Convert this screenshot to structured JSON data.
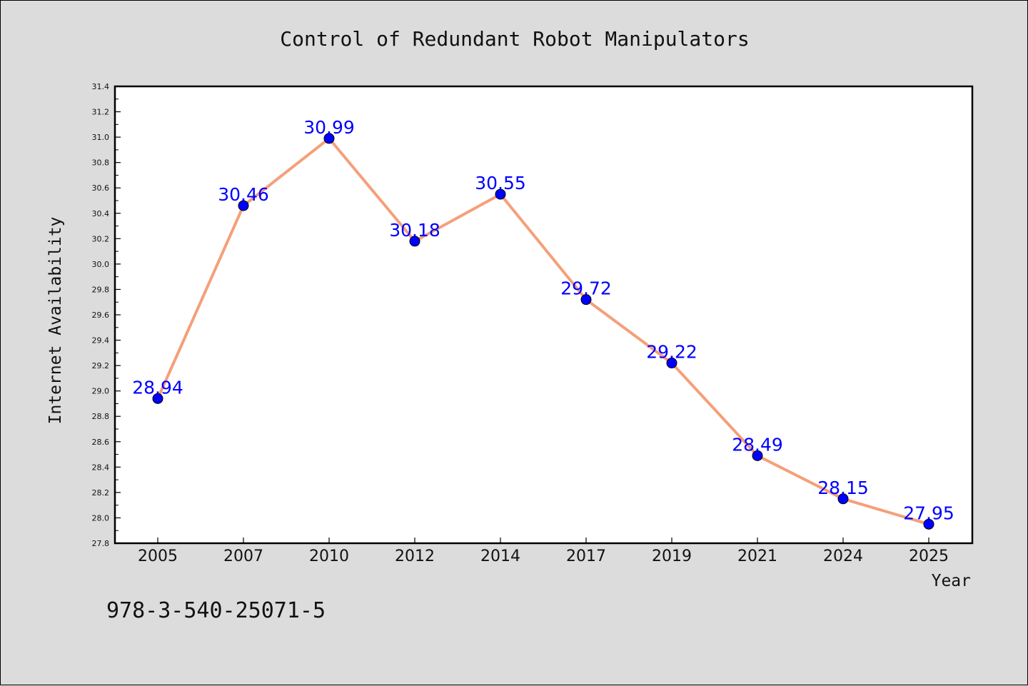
{
  "chart_data": {
    "type": "line",
    "title": "Control of Redundant Robot Manipulators",
    "xlabel": "Year",
    "ylabel": "Internet Availability",
    "categories": [
      "2005",
      "2007",
      "2010",
      "2012",
      "2014",
      "2017",
      "2019",
      "2021",
      "2024",
      "2025"
    ],
    "series": [
      {
        "values": [
          28.94,
          30.46,
          30.99,
          30.18,
          30.55,
          29.72,
          29.22,
          28.49,
          28.15,
          27.95
        ],
        "data_labels": [
          "28.94",
          "30.46",
          "30.99",
          "30.18",
          "30.55",
          "29.72",
          "29.22",
          "28.49",
          "28.15",
          "27.95"
        ]
      }
    ],
    "ylim": [
      27.8,
      31.4
    ],
    "yticks": [
      "27.8",
      "28.0",
      "28.2",
      "28.4",
      "28.6",
      "28.8",
      "29.0",
      "29.2",
      "29.4",
      "29.6",
      "29.8",
      "30.0",
      "30.2",
      "30.4",
      "30.6",
      "30.8",
      "31.0",
      "31.2",
      "31.4"
    ],
    "grid": false,
    "legend": "none",
    "colors": {
      "line": "#f4a07a",
      "marker": "#0000ff",
      "data_label": "#0000ff",
      "background": "#dcdcdc",
      "plot_background": "#ffffff"
    }
  },
  "annotation": "978-3-540-25071-5"
}
